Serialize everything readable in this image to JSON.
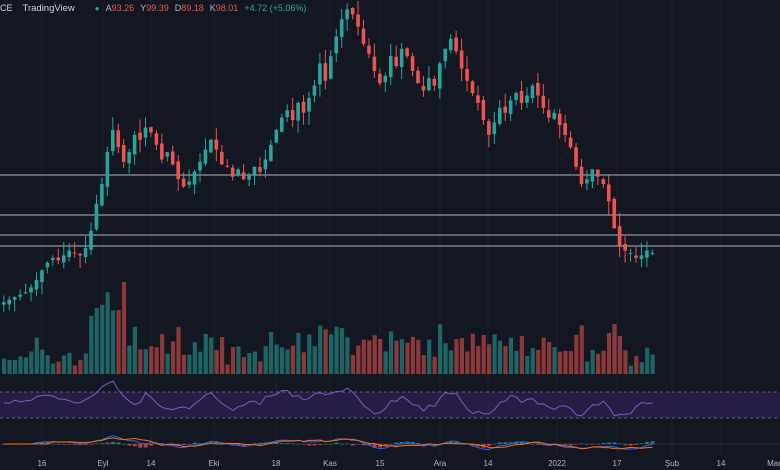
{
  "header": {
    "symbol_fragment": "CE",
    "brand": "TradingView",
    "status_dot": "●",
    "ohlc": [
      {
        "key": "A",
        "value": "93.26"
      },
      {
        "key": "Y",
        "value": "99.39"
      },
      {
        "key": "D",
        "value": "89.18"
      },
      {
        "key": "K",
        "value": "98.01"
      }
    ],
    "change": "+4.72 (+5.06%)"
  },
  "x_axis_labels": [
    "16",
    "Eyl",
    "14",
    "Eki",
    "18",
    "Kas",
    "15",
    "Ara",
    "14",
    "2022",
    "17",
    "Şub",
    "14",
    "Mar"
  ],
  "colors": {
    "background": "#131722",
    "up": "#26a69a",
    "down": "#ef5350",
    "rsi_line": "#7e57c2",
    "rsi_band": "#2a1f4a",
    "macd_line": "#2962ff",
    "signal_line": "#ff6d00",
    "hline": "#b2b5be"
  },
  "chart_data": {
    "type": "candlestick",
    "x_axis_ticks": [
      "16",
      "Eyl",
      "14",
      "Eki",
      "18",
      "Kas",
      "15",
      "Ara",
      "14",
      "2022",
      "17",
      "Şub",
      "14",
      "Mar"
    ],
    "close": [
      2.6,
      2.7,
      2.8,
      2.9,
      3.0,
      3.2,
      3.5,
      3.9,
      4.2,
      4.4,
      4.3,
      4.5,
      4.7,
      4.6,
      4.5,
      4.8,
      5.5,
      6.6,
      7.4,
      8.7,
      9.6,
      8.9,
      8.3,
      8.7,
      9.4,
      9.2,
      9.7,
      9.5,
      9.0,
      8.4,
      8.7,
      8.2,
      7.6,
      7.3,
      7.5,
      7.9,
      8.3,
      8.8,
      9.2,
      8.8,
      8.2,
      8.1,
      7.7,
      8.0,
      7.6,
      7.8,
      8.1,
      7.9,
      8.4,
      9.0,
      9.6,
      10.1,
      10.4,
      10.0,
      10.7,
      10.3,
      10.9,
      11.4,
      12.3,
      11.6,
      12.6,
      13.4,
      14.1,
      14.5,
      14.3,
      13.8,
      13.1,
      12.7,
      12.0,
      11.5,
      11.8,
      12.6,
      12.2,
      12.9,
      12.6,
      12.0,
      11.5,
      11.2,
      11.7,
      11.4,
      12.3,
      12.9,
      13.3,
      12.8,
      12.1,
      11.6,
      11.1,
      10.7,
      10.0,
      9.4,
      9.9,
      10.5,
      10.3,
      10.8,
      11.1,
      10.7,
      11.0,
      11.4,
      11.0,
      10.5,
      10.1,
      10.3,
      9.8,
      9.4,
      8.9,
      8.1,
      7.4,
      7.6,
      8.0,
      7.7,
      7.4,
      6.7,
      5.6,
      4.9,
      4.7,
      4.6,
      4.4,
      4.5,
      4.7,
      4.6
    ]
  }
}
